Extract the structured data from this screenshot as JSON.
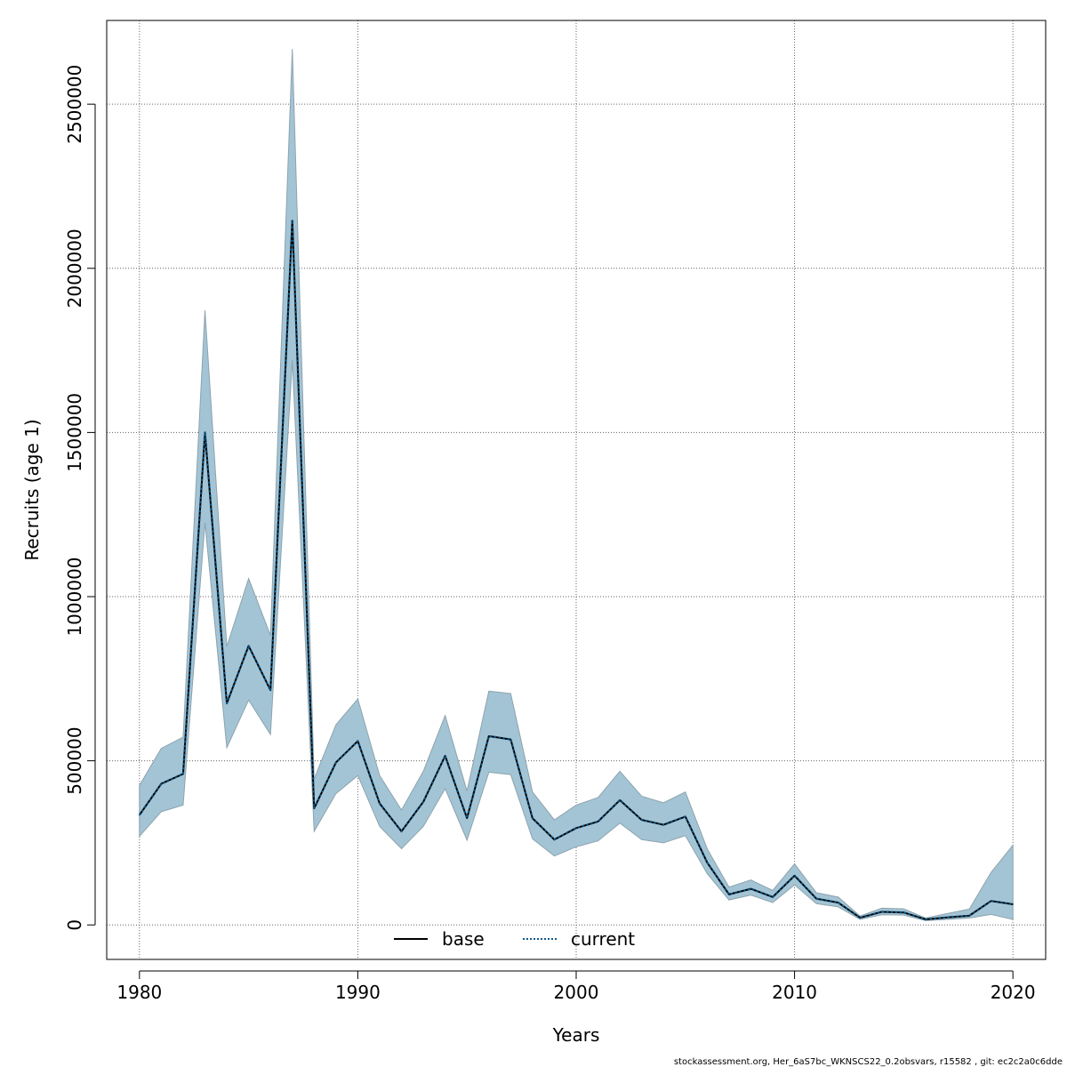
{
  "chart_data": {
    "type": "line",
    "title": "",
    "xlabel": "Years",
    "ylabel": "Recruits (age 1)",
    "xlim": [
      1978.5,
      2021.5
    ],
    "ylim": [
      -105000,
      2755000
    ],
    "x_ticks": [
      1980,
      1990,
      2000,
      2010,
      2020
    ],
    "x_tick_labels": [
      "1980",
      "1990",
      "2000",
      "2010",
      "2020"
    ],
    "y_ticks": [
      0,
      500000,
      1000000,
      1500000,
      2000000,
      2500000
    ],
    "y_tick_labels": [
      "0",
      "500000",
      "1000000",
      "1500000",
      "2000000",
      "2500000"
    ],
    "grid": true,
    "legend_position": "bottom-center",
    "x": [
      1980,
      1981,
      1982,
      1983,
      1984,
      1985,
      1986,
      1987,
      1988,
      1989,
      1990,
      1991,
      1992,
      1993,
      1994,
      1995,
      1996,
      1997,
      1998,
      1999,
      2000,
      2001,
      2002,
      2003,
      2004,
      2005,
      2006,
      2007,
      2008,
      2009,
      2010,
      2011,
      2012,
      2013,
      2014,
      2015,
      2016,
      2017,
      2018,
      2019,
      2020
    ],
    "series": [
      {
        "name": "base",
        "values": [
          335000,
          430000,
          460000,
          1500000,
          675000,
          850000,
          715000,
          2145000,
          355000,
          495000,
          560000,
          370000,
          285000,
          375000,
          515000,
          325000,
          575000,
          565000,
          325000,
          260000,
          295000,
          315000,
          380000,
          320000,
          305000,
          330000,
          190000,
          93000,
          110000,
          85000,
          150000,
          80000,
          68000,
          22000,
          40000,
          38000,
          17000,
          23000,
          28000,
          73000,
          63000
        ],
        "lower": [
          270000,
          345000,
          365000,
          1225000,
          540000,
          685000,
          580000,
          1720000,
          285000,
          400000,
          455000,
          300000,
          232000,
          300000,
          415000,
          258000,
          465000,
          458000,
          262000,
          210000,
          238000,
          256000,
          310000,
          260000,
          250000,
          272000,
          156000,
          76000,
          91000,
          68000,
          122000,
          65000,
          55000,
          17000,
          31000,
          30000,
          13000,
          17000,
          21000,
          32000,
          17000
        ],
        "upper": [
          425000,
          538000,
          572000,
          1872000,
          848000,
          1055000,
          882000,
          2668000,
          445000,
          610000,
          688000,
          455000,
          350000,
          468000,
          638000,
          408000,
          712000,
          705000,
          405000,
          320000,
          365000,
          388000,
          468000,
          392000,
          372000,
          405000,
          232000,
          115000,
          137000,
          105000,
          186000,
          98000,
          85000,
          27000,
          51000,
          49000,
          21000,
          35000,
          48000,
          160000,
          243000
        ]
      },
      {
        "name": "current",
        "values": [
          335000,
          430000,
          460000,
          1500000,
          675000,
          850000,
          715000,
          2145000,
          355000,
          495000,
          560000,
          370000,
          285000,
          375000,
          515000,
          325000,
          575000,
          565000,
          325000,
          260000,
          295000,
          315000,
          380000,
          320000,
          305000,
          330000,
          190000,
          93000,
          110000,
          85000,
          150000,
          80000,
          68000,
          22000,
          40000,
          38000,
          17000,
          23000,
          28000,
          73000,
          63000
        ]
      }
    ],
    "band_color": "#a3c4d5",
    "band_edge_color": "#8da3ad",
    "base_color": "#000000",
    "current_color": "#0f5a8a"
  },
  "footer": "stockassessment.org, Her_6aS7bc_WKNSCS22_0.2obsvars, r15582 , git: ec2c2a0c6dde"
}
